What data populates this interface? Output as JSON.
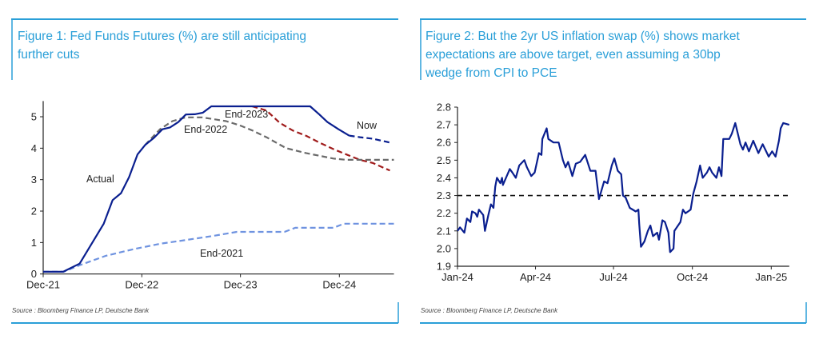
{
  "colors": {
    "frame": "#2a9fd8",
    "actual": "#0a1f8f",
    "now": "#0a1f8f",
    "end2023": "#a01c1c",
    "end2022": "#6b6b6b",
    "end2021": "#6f93e0",
    "inflation": "#0a1f8f",
    "target_line": "#111111"
  },
  "figures": [
    {
      "title_lines": [
        "Figure 1: Fed Funds Futures (%) are still anticipating",
        "further cuts"
      ],
      "source": "Source : Bloomberg Finance LP, Deutsche Bank"
    },
    {
      "title_lines": [
        "Figure 2: But the 2yr US inflation swap (%) shows market",
        "expectations are above target, even assuming a 30bp",
        "wedge from CPI to PCE"
      ],
      "source": "Source : Bloomberg Finance LP, Deutsche Bank"
    }
  ],
  "chart_data": [
    {
      "type": "line",
      "title": "Figure 1: Fed Funds Futures (%) are still anticipating further cuts",
      "xlabel": "",
      "ylabel": "",
      "x_range": [
        "2021-12-01",
        "2025-06-21"
      ],
      "ylim": [
        0,
        5.5
      ],
      "y_ticks": [
        "0",
        "1",
        "2",
        "3",
        "4",
        "5"
      ],
      "x_ticks": [
        {
          "label": "Dec-21",
          "date": "2021-12-01"
        },
        {
          "label": "Dec-22",
          "date": "2022-12-01"
        },
        {
          "label": "Dec-23",
          "date": "2023-12-01"
        },
        {
          "label": "Dec-24",
          "date": "2024-12-01"
        }
      ],
      "grid": false,
      "series": [
        {
          "name": "Actual",
          "style": "solid",
          "color_key": "actual",
          "label_pos": [
            2022,
            9
          ],
          "points": [
            [
              "2021-12-01",
              0.07
            ],
            [
              "2022-02-13",
              0.07
            ],
            [
              "2022-04-15",
              0.33
            ],
            [
              "2022-07-13",
              1.6
            ],
            [
              "2022-08-15",
              2.35
            ],
            [
              "2022-09-15",
              2.57
            ],
            [
              "2022-10-15",
              3.08
            ],
            [
              "2022-11-15",
              3.8
            ],
            [
              "2022-12-13",
              4.1
            ],
            [
              "2023-01-15",
              4.33
            ],
            [
              "2023-02-15",
              4.6
            ],
            [
              "2023-03-15",
              4.66
            ],
            [
              "2023-04-15",
              4.83
            ],
            [
              "2023-05-13",
              5.07
            ],
            [
              "2023-06-15",
              5.08
            ],
            [
              "2023-07-15",
              5.13
            ],
            [
              "2023-08-15",
              5.33
            ],
            [
              "2024-08-15",
              5.33
            ],
            [
              "2024-09-18",
              5.07
            ],
            [
              "2024-10-18",
              4.83
            ],
            [
              "2024-11-28",
              4.6
            ],
            [
              "2025-01-06",
              4.4
            ]
          ]
        },
        {
          "name": "Now",
          "style": "dashed",
          "color_key": "now",
          "points": [
            [
              "2025-01-06",
              4.4
            ],
            [
              "2025-02-15",
              4.35
            ],
            [
              "2025-04-03",
              4.3
            ],
            [
              "2025-06-06",
              4.18
            ]
          ]
        },
        {
          "name": "End-2023",
          "style": "dashed",
          "color_key": "end2023",
          "points": [
            [
              "2024-01-13",
              5.33
            ],
            [
              "2024-03-06",
              5.2
            ],
            [
              "2024-04-24",
              4.81
            ],
            [
              "2024-06-12",
              4.56
            ],
            [
              "2024-08-01",
              4.39
            ],
            [
              "2024-09-18",
              4.18
            ],
            [
              "2024-11-09",
              3.97
            ],
            [
              "2024-12-27",
              3.8
            ],
            [
              "2025-02-15",
              3.63
            ],
            [
              "2025-04-03",
              3.53
            ],
            [
              "2025-06-06",
              3.29
            ]
          ]
        },
        {
          "name": "End-2022",
          "style": "dashed",
          "color_key": "end2022",
          "points": [
            [
              "2022-12-13",
              4.1
            ],
            [
              "2023-02-06",
              4.6
            ],
            [
              "2023-03-24",
              4.86
            ],
            [
              "2023-05-13",
              4.98
            ],
            [
              "2023-07-12",
              4.98
            ],
            [
              "2023-10-09",
              4.86
            ],
            [
              "2023-11-27",
              4.73
            ],
            [
              "2024-01-15",
              4.56
            ],
            [
              "2024-03-06",
              4.35
            ],
            [
              "2024-05-18",
              4.0
            ],
            [
              "2024-08-01",
              3.84
            ],
            [
              "2024-11-09",
              3.67
            ],
            [
              "2024-12-27",
              3.63
            ],
            [
              "2025-06-21",
              3.63
            ]
          ]
        },
        {
          "name": "End-2021",
          "style": "dashed",
          "color_key": "end2021",
          "points": [
            [
              "2021-12-01",
              0.07
            ],
            [
              "2022-02-15",
              0.07
            ],
            [
              "2022-04-15",
              0.28
            ],
            [
              "2022-07-21",
              0.58
            ],
            [
              "2022-11-01",
              0.79
            ],
            [
              "2023-02-06",
              0.96
            ],
            [
              "2023-05-13",
              1.08
            ],
            [
              "2023-08-21",
              1.21
            ],
            [
              "2023-11-18",
              1.34
            ],
            [
              "2024-05-12",
              1.34
            ],
            [
              "2024-06-21",
              1.47
            ],
            [
              "2024-11-09",
              1.47
            ],
            [
              "2024-12-18",
              1.6
            ],
            [
              "2025-06-21",
              1.6
            ]
          ]
        }
      ]
    },
    {
      "type": "line",
      "title": "Figure 2: But the 2yr US inflation swap (%) shows market expectations are above target, even assuming a 30bp wedge from CPI to PCE",
      "xlabel": "",
      "ylabel": "",
      "x_range": [
        "2024-01-01",
        "2025-01-22"
      ],
      "ylim": [
        1.9,
        2.8
      ],
      "y_ticks": [
        "1.9",
        "2.0",
        "2.1",
        "2.2",
        "2.3",
        "2.4",
        "2.5",
        "2.6",
        "2.7",
        "2.8"
      ],
      "x_ticks": [
        {
          "label": "Jan-24",
          "date": "2024-01-01"
        },
        {
          "label": "Apr-24",
          "date": "2024-04-01"
        },
        {
          "label": "Jul-24",
          "date": "2024-07-01"
        },
        {
          "label": "Oct-24",
          "date": "2024-10-01"
        },
        {
          "label": "Jan-25",
          "date": "2025-01-01"
        }
      ],
      "grid": false,
      "reference_line": {
        "y": 2.3,
        "style": "dashed"
      },
      "series": [
        {
          "style": "solid",
          "color_key": "inflation",
          "points": [
            [
              "2024-01-01",
              2.1
            ],
            [
              "2024-01-04",
              2.12
            ],
            [
              "2024-01-09",
              2.09
            ],
            [
              "2024-01-12",
              2.17
            ],
            [
              "2024-01-16",
              2.15
            ],
            [
              "2024-01-18",
              2.21
            ],
            [
              "2024-01-22",
              2.2
            ],
            [
              "2024-01-24",
              2.18
            ],
            [
              "2024-01-26",
              2.22
            ],
            [
              "2024-01-31",
              2.19
            ],
            [
              "2024-02-02",
              2.1
            ],
            [
              "2024-02-06",
              2.19
            ],
            [
              "2024-02-09",
              2.25
            ],
            [
              "2024-02-12",
              2.23
            ],
            [
              "2024-02-14",
              2.35
            ],
            [
              "2024-02-16",
              2.4
            ],
            [
              "2024-02-20",
              2.37
            ],
            [
              "2024-02-22",
              2.4
            ],
            [
              "2024-02-23",
              2.36
            ],
            [
              "2024-03-02",
              2.45
            ],
            [
              "2024-03-05",
              2.43
            ],
            [
              "2024-03-09",
              2.4
            ],
            [
              "2024-03-13",
              2.47
            ],
            [
              "2024-03-19",
              2.5
            ],
            [
              "2024-03-22",
              2.46
            ],
            [
              "2024-03-27",
              2.41
            ],
            [
              "2024-03-31",
              2.43
            ],
            [
              "2024-04-05",
              2.54
            ],
            [
              "2024-04-08",
              2.53
            ],
            [
              "2024-04-09",
              2.62
            ],
            [
              "2024-04-14",
              2.68
            ],
            [
              "2024-04-16",
              2.62
            ],
            [
              "2024-04-22",
              2.6
            ],
            [
              "2024-04-28",
              2.6
            ],
            [
              "2024-05-03",
              2.5
            ],
            [
              "2024-05-06",
              2.46
            ],
            [
              "2024-05-09",
              2.49
            ],
            [
              "2024-05-14",
              2.41
            ],
            [
              "2024-05-18",
              2.48
            ],
            [
              "2024-05-23",
              2.49
            ],
            [
              "2024-05-29",
              2.53
            ],
            [
              "2024-06-04",
              2.44
            ],
            [
              "2024-06-10",
              2.44
            ],
            [
              "2024-06-14",
              2.28
            ],
            [
              "2024-06-20",
              2.38
            ],
            [
              "2024-06-24",
              2.37
            ],
            [
              "2024-06-29",
              2.47
            ],
            [
              "2024-07-02",
              2.51
            ],
            [
              "2024-07-06",
              2.44
            ],
            [
              "2024-07-10",
              2.42
            ],
            [
              "2024-07-12",
              2.3
            ],
            [
              "2024-07-15",
              2.29
            ],
            [
              "2024-07-20",
              2.23
            ],
            [
              "2024-07-27",
              2.21
            ],
            [
              "2024-07-30",
              2.22
            ],
            [
              "2024-07-31",
              2.14
            ],
            [
              "2024-08-02",
              2.01
            ],
            [
              "2024-08-06",
              2.04
            ],
            [
              "2024-08-10",
              2.1
            ],
            [
              "2024-08-13",
              2.13
            ],
            [
              "2024-08-16",
              2.07
            ],
            [
              "2024-08-21",
              2.09
            ],
            [
              "2024-08-23",
              2.05
            ],
            [
              "2024-08-27",
              2.16
            ],
            [
              "2024-08-30",
              2.15
            ],
            [
              "2024-09-03",
              2.09
            ],
            [
              "2024-09-05",
              1.98
            ],
            [
              "2024-09-09",
              2.0
            ],
            [
              "2024-09-10",
              2.1
            ],
            [
              "2024-09-17",
              2.15
            ],
            [
              "2024-09-20",
              2.22
            ],
            [
              "2024-09-23",
              2.2
            ],
            [
              "2024-09-26",
              2.21
            ],
            [
              "2024-09-29",
              2.22
            ],
            [
              "2024-10-02",
              2.31
            ],
            [
              "2024-10-06",
              2.38
            ],
            [
              "2024-10-10",
              2.47
            ],
            [
              "2024-10-13",
              2.4
            ],
            [
              "2024-10-18",
              2.43
            ],
            [
              "2024-10-21",
              2.46
            ],
            [
              "2024-10-24",
              2.43
            ],
            [
              "2024-10-29",
              2.4
            ],
            [
              "2024-11-01",
              2.46
            ],
            [
              "2024-11-04",
              2.41
            ],
            [
              "2024-11-06",
              2.62
            ],
            [
              "2024-11-13",
              2.62
            ],
            [
              "2024-11-16",
              2.65
            ],
            [
              "2024-11-20",
              2.71
            ],
            [
              "2024-11-26",
              2.59
            ],
            [
              "2024-11-29",
              2.56
            ],
            [
              "2024-12-02",
              2.6
            ],
            [
              "2024-12-06",
              2.55
            ],
            [
              "2024-12-11",
              2.61
            ],
            [
              "2024-12-17",
              2.54
            ],
            [
              "2024-12-22",
              2.59
            ],
            [
              "2024-12-29",
              2.52
            ],
            [
              "2025-01-02",
              2.55
            ],
            [
              "2025-01-06",
              2.52
            ],
            [
              "2025-01-10",
              2.61
            ],
            [
              "2025-01-12",
              2.68
            ],
            [
              "2025-01-15",
              2.71
            ],
            [
              "2025-01-22",
              2.7
            ]
          ]
        }
      ]
    }
  ]
}
